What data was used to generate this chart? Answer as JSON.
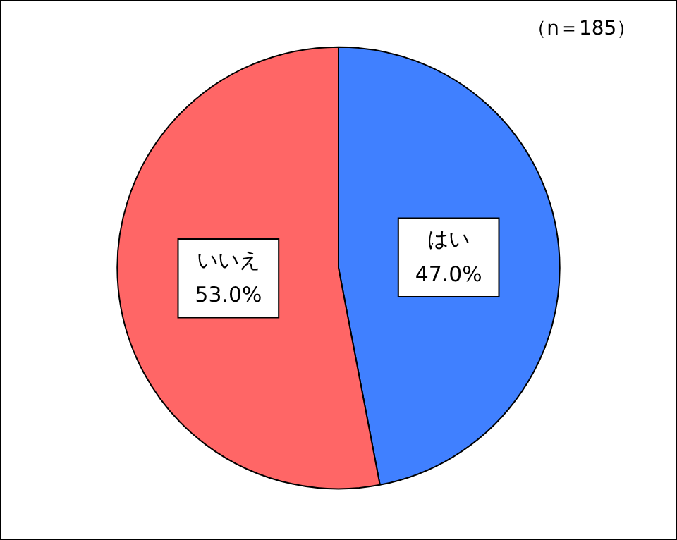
{
  "chart_data": {
    "type": "pie",
    "categories": [
      "はい",
      "いいえ"
    ],
    "values": [
      47.0,
      53.0
    ],
    "colors": [
      "#4080ff",
      "#ff6666"
    ],
    "value_labels": [
      "47.0%",
      "53.0%"
    ],
    "annotations": [
      "（n＝185）"
    ],
    "legend": false
  }
}
